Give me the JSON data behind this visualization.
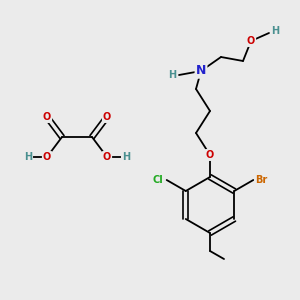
{
  "background_color": "#ebebeb",
  "fig_width": 3.0,
  "fig_height": 3.0,
  "dpi": 100,
  "colors": {
    "C": "#000000",
    "H": "#4a9090",
    "O": "#cc0000",
    "N": "#2222cc",
    "Br": "#cc6600",
    "Cl": "#22aa22",
    "bond": "#000000"
  }
}
